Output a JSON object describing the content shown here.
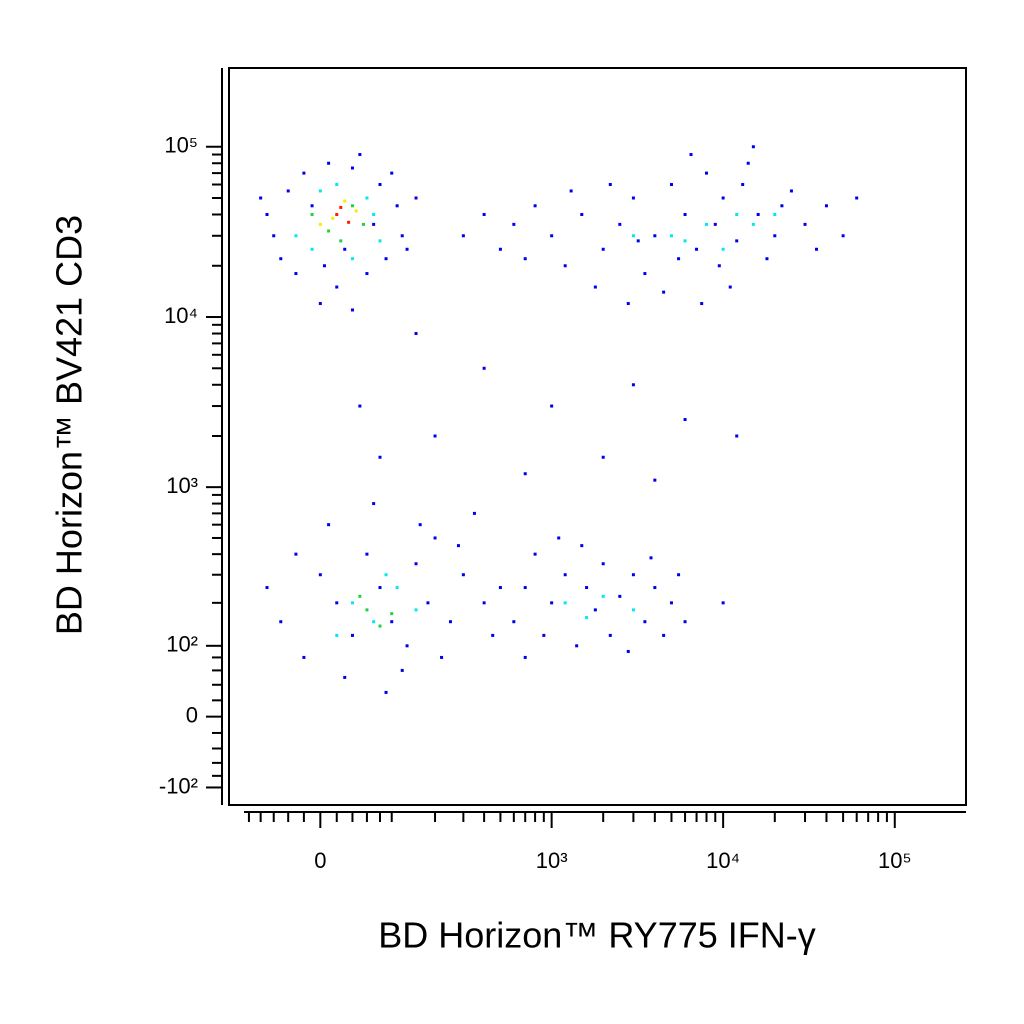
{
  "chart_data": {
    "type": "scatter",
    "xlabel": "BD Horizon™ RY775 IFN-γ",
    "ylabel": "BD Horizon™ BV421 CD3",
    "xscale": "biexponential",
    "yscale": "biexponential",
    "xlim": [
      -140,
      260000
    ],
    "ylim": [
      -135,
      290000
    ],
    "xticks": [
      0,
      {
        "value": 1000,
        "label": "10³"
      },
      {
        "value": 10000,
        "label": "10⁴"
      },
      {
        "value": 100000,
        "label": "10⁵"
      }
    ],
    "yticks": [
      {
        "value": -100,
        "label": "-10²"
      },
      0,
      {
        "value": 100,
        "label": "10²"
      },
      {
        "value": 1000,
        "label": "10³"
      },
      {
        "value": 10000,
        "label": "10⁴"
      },
      {
        "value": 100000,
        "label": "10⁵"
      }
    ],
    "xminorticks": [
      -100,
      -80,
      -60,
      -40,
      -20,
      20,
      40,
      60,
      80,
      100,
      200,
      300,
      400,
      500,
      600,
      700,
      800,
      900,
      2000,
      3000,
      4000,
      5000,
      6000,
      7000,
      8000,
      9000,
      20000,
      30000,
      40000,
      50000,
      60000,
      70000,
      80000,
      90000
    ],
    "yminorticks": [
      -80,
      -60,
      -40,
      -20,
      20,
      40,
      60,
      80,
      200,
      300,
      400,
      500,
      600,
      700,
      800,
      900,
      2000,
      3000,
      4000,
      5000,
      6000,
      7000,
      8000,
      9000,
      20000,
      30000,
      40000,
      50000,
      60000,
      70000,
      80000,
      90000
    ],
    "series": [
      {
        "color": "#0000ee",
        "x": [
          -60,
          -40,
          -20,
          10,
          40,
          80,
          110,
          120,
          90,
          60,
          20,
          -30,
          -70,
          -50,
          100,
          0,
          30,
          70,
          -10,
          50,
          150,
          130,
          -80,
          5,
          40,
          300,
          400,
          500,
          600,
          800,
          1000,
          1200,
          1500,
          2000,
          2500,
          3000,
          3500,
          4000,
          5000,
          6000,
          7000,
          8000,
          9000,
          10000,
          12000,
          14000,
          16000,
          20000,
          25000,
          30000,
          40000,
          50000,
          60000,
          4500,
          7500,
          11000,
          2200,
          1800,
          3200,
          5500,
          9500,
          13000,
          18000,
          22000,
          35000,
          6500,
          15000,
          700,
          1300,
          2800,
          50,
          80,
          200,
          400,
          1000,
          2000,
          3000,
          6000,
          12000,
          150,
          700,
          4000,
          -50,
          -20,
          0,
          20,
          40,
          60,
          80,
          100,
          120,
          150,
          180,
          200,
          250,
          300,
          350,
          400,
          450,
          30,
          -70,
          10,
          70,
          130,
          220,
          280,
          -30,
          90,
          160,
          500,
          600,
          700,
          800,
          900,
          1000,
          1200,
          1400,
          1600,
          1800,
          2000,
          2200,
          2500,
          3000,
          3500,
          4000,
          4500,
          5000,
          6000,
          1100,
          2800,
          3800,
          700,
          1500,
          5500,
          10000
        ],
        "values": [
          30000,
          55000,
          70000,
          80000,
          75000,
          60000,
          45000,
          30000,
          22000,
          18000,
          15000,
          18000,
          40000,
          22000,
          70000,
          12000,
          25000,
          35000,
          45000,
          90000,
          50000,
          25000,
          50000,
          20000,
          11000,
          30000,
          40000,
          25000,
          35000,
          45000,
          30000,
          20000,
          40000,
          25000,
          35000,
          50000,
          18000,
          30000,
          60000,
          40000,
          25000,
          70000,
          35000,
          50000,
          28000,
          80000,
          40000,
          30000,
          55000,
          35000,
          45000,
          30000,
          50000,
          14000,
          12000,
          15000,
          60000,
          15000,
          28000,
          22000,
          20000,
          60000,
          22000,
          45000,
          25000,
          90000,
          100000,
          22000,
          55000,
          12000,
          3000,
          1500,
          2000,
          5000,
          3000,
          1500,
          4000,
          2500,
          2000,
          8000,
          1200,
          1100,
          150,
          80,
          300,
          200,
          120,
          400,
          250,
          150,
          60,
          350,
          200,
          500,
          150,
          300,
          700,
          200,
          120,
          50,
          250,
          600,
          800,
          100,
          80,
          450,
          400,
          30,
          600,
          250,
          150,
          250,
          400,
          120,
          200,
          300,
          100,
          250,
          180,
          350,
          120,
          220,
          300,
          150,
          250,
          120,
          200,
          150,
          500,
          90,
          380,
          80,
          450,
          300,
          200
        ]
      },
      {
        "color": "#00e8f0",
        "x": [
          -30,
          60,
          20,
          80,
          -10,
          40,
          70,
          0,
          5000,
          8000,
          12000,
          6000,
          15000,
          3000,
          20000,
          10000,
          40,
          70,
          110,
          20,
          150,
          90,
          1200,
          2000,
          3000,
          1600
        ],
        "values": [
          30000,
          50000,
          60000,
          28000,
          25000,
          22000,
          40000,
          55000,
          30000,
          35000,
          40000,
          28000,
          35000,
          30000,
          40000,
          25000,
          200,
          150,
          250,
          120,
          180,
          300,
          200,
          220,
          180,
          160
        ]
      },
      {
        "color": "#22d040",
        "x": [
          10,
          40,
          -10,
          55,
          25,
          60,
          80,
          50,
          100
        ],
        "values": [
          32000,
          45000,
          40000,
          35000,
          28000,
          180,
          140,
          220,
          170
        ]
      },
      {
        "color": "#f0f000",
        "x": [
          15,
          45,
          0,
          30
        ],
        "values": [
          38000,
          42000,
          35000,
          48000
        ]
      },
      {
        "color": "#ff1a00",
        "x": [
          20,
          35,
          25
        ],
        "values": [
          40000,
          36000,
          44000
        ]
      }
    ]
  }
}
